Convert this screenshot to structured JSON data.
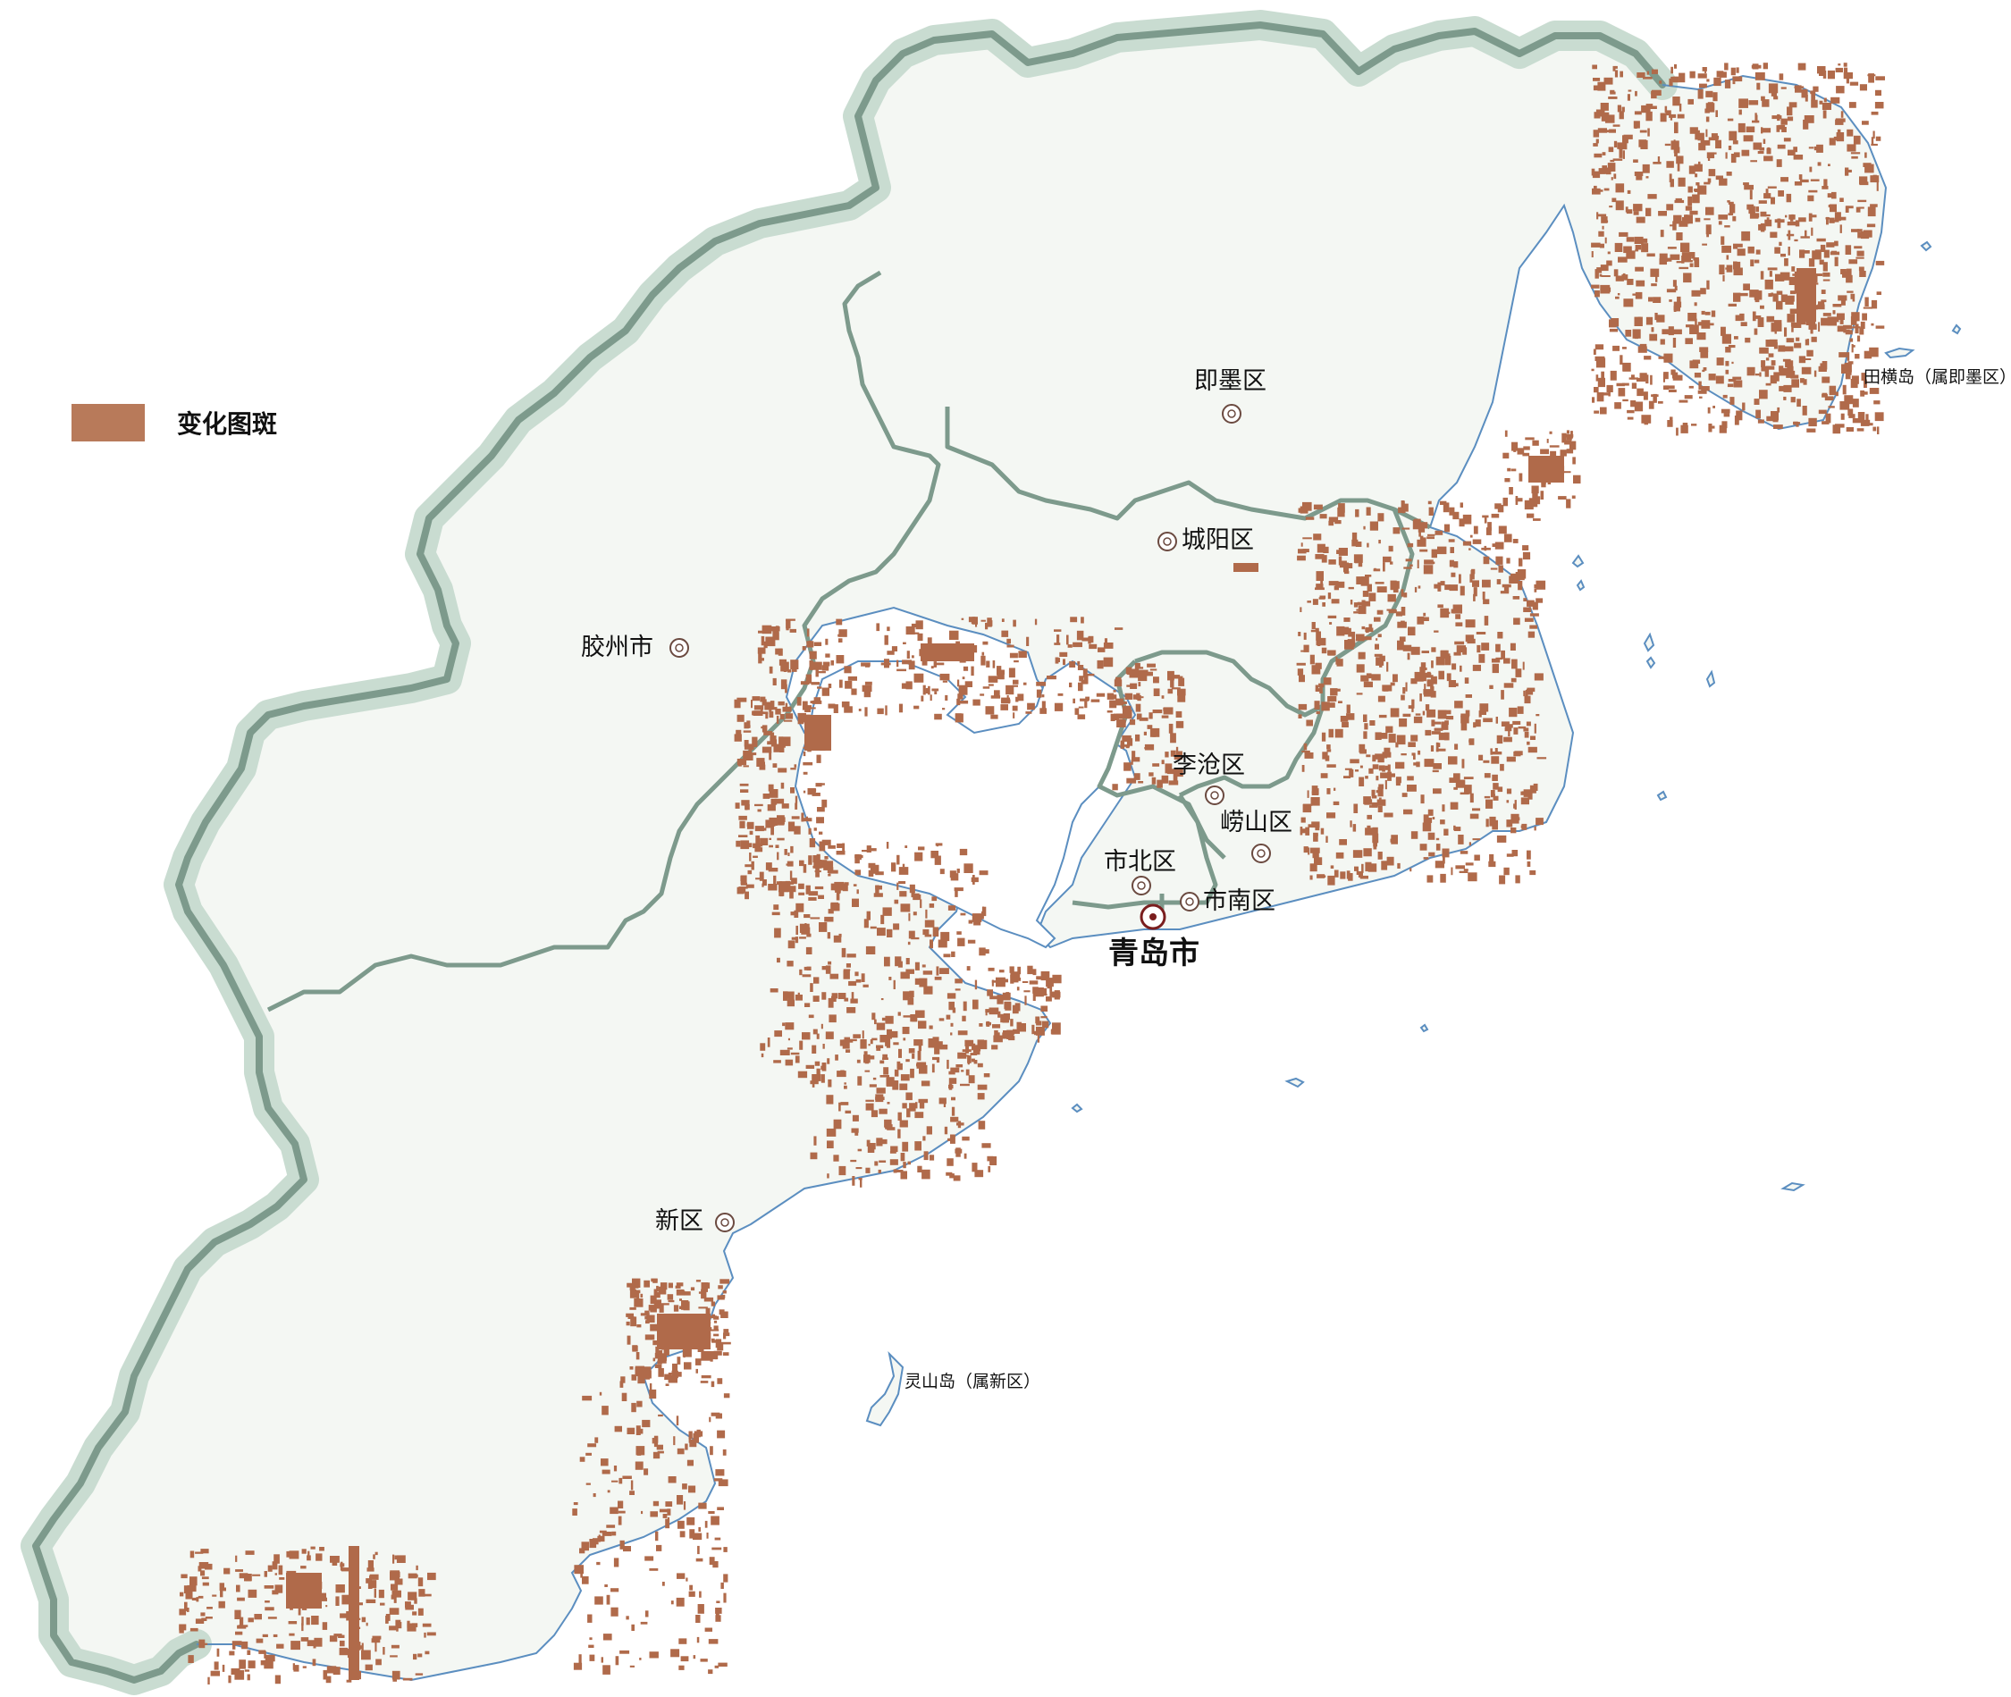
{
  "legend": {
    "label": "变化图斑",
    "color": "#b87a5a"
  },
  "colors": {
    "land": "#f4f7f3",
    "boundary": "#7d9a8c",
    "boundary_halo": "#c9dcd1",
    "coast": "#5b8ec0",
    "change": "#b06a4a"
  },
  "places": {
    "jimo": "即墨区",
    "chengyang": "城阳区",
    "jiaozhou": "胶州市",
    "licang": "李沧区",
    "laoshan": "崂山区",
    "shibei": "市北区",
    "shinan": "市南区",
    "qingdao": "青岛市",
    "xinqu": "新区",
    "tianheng": "田横岛（属即墨区）",
    "lingshan": "灵山岛（属新区）"
  }
}
